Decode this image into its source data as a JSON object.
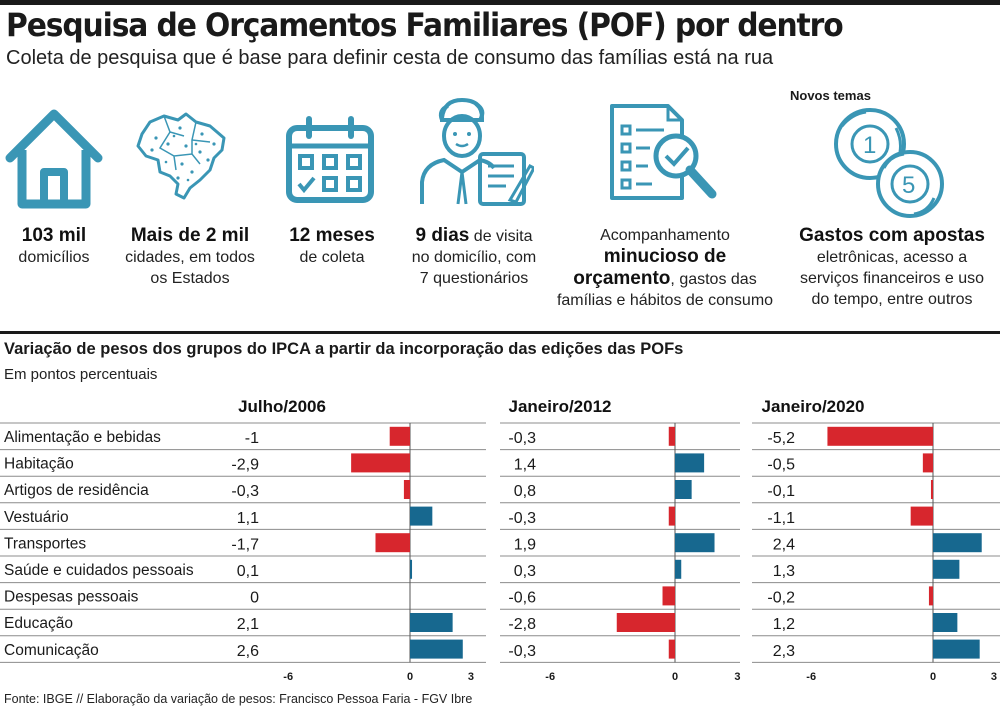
{
  "header": {
    "title": "Pesquisa de Orçamentos Familiares (POF) por dentro",
    "subtitle": "Coleta de pesquisa que é base para definir cesta de consumo das famílias está na rua"
  },
  "stats": {
    "households": {
      "strong": "103 mil",
      "text": "domicílios",
      "icon": "house-icon"
    },
    "cities": {
      "strong": "Mais de 2 mil",
      "text1": "cidades, em todos",
      "text2": "os Estados",
      "icon": "brazil-map-icon"
    },
    "months": {
      "strong": "12 meses",
      "text": "de coleta",
      "icon": "calendar-icon"
    },
    "days": {
      "strong": "9 dias",
      "text1": " de visita",
      "text2": "no domicílio, com",
      "text3": "7 questionários",
      "icon": "interviewer-icon"
    },
    "budget": {
      "line1": "Acompanhamento",
      "strong1": "minucioso de",
      "strong2": "orçamento",
      "text2": ", gastos das",
      "line4": "famílias e hábitos de consumo",
      "icon": "document-magnifier-icon"
    },
    "new_topics": {
      "label": "Novos temas",
      "strong": "Gastos com apostas",
      "line2": "eletrônicas, acesso a",
      "line3": "serviços financeiros e uso",
      "line4": "do tempo, entre outros",
      "icon": "lottery-balls-icon"
    }
  },
  "accent_color": "#3a96b5",
  "chart_data": {
    "type": "bar",
    "title": "Variação de pesos dos grupos do IPCA a partir da incorporação das edições das POFs",
    "unit": "Em pontos percentuais",
    "categories": [
      "Alimentação e bebidas",
      "Habitação",
      "Artigos de residência",
      "Vestuário",
      "Transportes",
      "Saúde e cuidados pessoais",
      "Despesas pessoais",
      "Educação",
      "Comunicação"
    ],
    "xlim": [
      -6,
      3
    ],
    "ticks": [
      "-6",
      "0",
      "3"
    ],
    "colors": {
      "negative": "#d7262d",
      "positive": "#17688f"
    },
    "series": [
      {
        "name": "Julho/2006",
        "values": [
          -1,
          -2.9,
          -0.3,
          1.1,
          -1.7,
          0.1,
          0,
          2.1,
          2.6
        ],
        "labels": [
          "-1",
          "-2,9",
          "-0,3",
          "1,1",
          "-1,7",
          "0,1",
          "0",
          "2,1",
          "2,6"
        ]
      },
      {
        "name": "Janeiro/2012",
        "values": [
          -0.3,
          1.4,
          0.8,
          -0.3,
          1.9,
          0.3,
          -0.6,
          -2.8,
          -0.3
        ],
        "labels": [
          "-0,3",
          "1,4",
          "0,8",
          "-0,3",
          "1,9",
          "0,3",
          "-0,6",
          "-2,8",
          "-0,3"
        ]
      },
      {
        "name": "Janeiro/2020",
        "values": [
          -5.2,
          -0.5,
          -0.1,
          -1.1,
          2.4,
          1.3,
          -0.2,
          1.2,
          2.3
        ],
        "labels": [
          "-5,2",
          "-0,5",
          "-0,1",
          "-1,1",
          "2,4",
          "1,3",
          "-0,2",
          "1,2",
          "2,3"
        ]
      }
    ]
  },
  "footer": {
    "source": "Fonte: IBGE // Elaboração da variação de pesos: Francisco Pessoa Faria - FGV Ibre"
  }
}
